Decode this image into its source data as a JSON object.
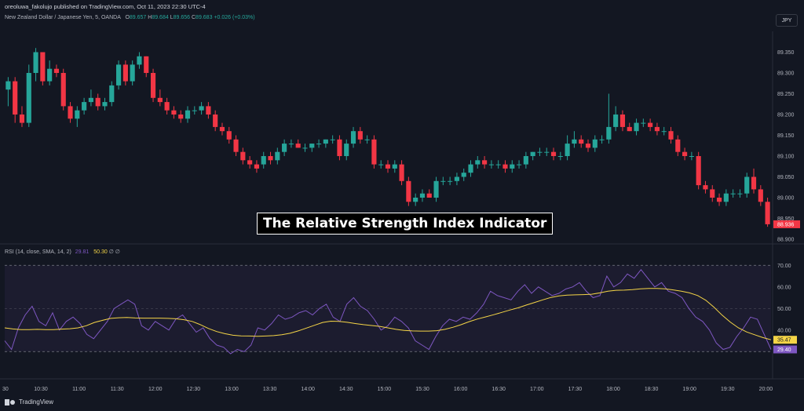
{
  "header": {
    "published": "oreoluwa_fakolujo published on TradingView.com, Oct 11, 2023 22:30 UTC-4",
    "symbol": "New Zealand Dollar / Japanese Yen, 5, OANDA",
    "o_label": "O",
    "o_value": "89.657",
    "h_label": "H",
    "h_value": "89.684",
    "l_label": "L",
    "l_value": "89.656",
    "c_label": "C",
    "c_value": "89.683",
    "change": "+0.026 (+0.03%)",
    "currency_button": "JPY"
  },
  "overlay_title": "The Relative Strength Index Indicator",
  "rsi_legend": {
    "label": "RSI (14, close, SMA, 14, 2)",
    "rsi_value": "29.81",
    "sma_value": "50.30",
    "icons": "∅ ∅"
  },
  "footer": {
    "brand": "TradingView"
  },
  "colors": {
    "up": "#26a69a",
    "down": "#f23645",
    "rsi": "#7e57c2",
    "sma": "#f5d547",
    "background": "#131722"
  },
  "chart_data": [
    {
      "type": "candlestick",
      "title": "New Zealand Dollar / Japanese Yen, 5, OANDA",
      "y_ticks": [
        "89.350",
        "89.300",
        "89.250",
        "89.200",
        "89.150",
        "89.100",
        "89.050",
        "89.000",
        "88.950",
        "88.900"
      ],
      "ylim": [
        88.9,
        89.4
      ],
      "last_price_label": "88.936",
      "candles": [
        {
          "o": 89.26,
          "h": 89.29,
          "l": 89.22,
          "c": 89.28
        },
        {
          "o": 89.28,
          "h": 89.29,
          "l": 89.18,
          "c": 89.2
        },
        {
          "o": 89.2,
          "h": 89.22,
          "l": 89.17,
          "c": 89.18
        },
        {
          "o": 89.18,
          "h": 89.32,
          "l": 89.17,
          "c": 89.3
        },
        {
          "o": 89.3,
          "h": 89.36,
          "l": 89.28,
          "c": 89.35
        },
        {
          "o": 89.35,
          "h": 89.35,
          "l": 89.27,
          "c": 89.28
        },
        {
          "o": 89.28,
          "h": 89.33,
          "l": 89.27,
          "c": 89.31
        },
        {
          "o": 89.31,
          "h": 89.32,
          "l": 89.29,
          "c": 89.3
        },
        {
          "o": 89.3,
          "h": 89.31,
          "l": 89.21,
          "c": 89.22
        },
        {
          "o": 89.22,
          "h": 89.23,
          "l": 89.18,
          "c": 89.19
        },
        {
          "o": 89.19,
          "h": 89.22,
          "l": 89.17,
          "c": 89.21
        },
        {
          "o": 89.21,
          "h": 89.24,
          "l": 89.2,
          "c": 89.23
        },
        {
          "o": 89.23,
          "h": 89.26,
          "l": 89.22,
          "c": 89.24
        },
        {
          "o": 89.24,
          "h": 89.25,
          "l": 89.21,
          "c": 89.22
        },
        {
          "o": 89.22,
          "h": 89.24,
          "l": 89.21,
          "c": 89.23
        },
        {
          "o": 89.23,
          "h": 89.28,
          "l": 89.22,
          "c": 89.27
        },
        {
          "o": 89.27,
          "h": 89.33,
          "l": 89.26,
          "c": 89.32
        },
        {
          "o": 89.32,
          "h": 89.33,
          "l": 89.27,
          "c": 89.28
        },
        {
          "o": 89.28,
          "h": 89.33,
          "l": 89.27,
          "c": 89.32
        },
        {
          "o": 89.32,
          "h": 89.35,
          "l": 89.31,
          "c": 89.34
        },
        {
          "o": 89.34,
          "h": 89.34,
          "l": 89.29,
          "c": 89.3
        },
        {
          "o": 89.3,
          "h": 89.31,
          "l": 89.23,
          "c": 89.24
        },
        {
          "o": 89.24,
          "h": 89.26,
          "l": 89.22,
          "c": 89.23
        },
        {
          "o": 89.23,
          "h": 89.24,
          "l": 89.2,
          "c": 89.21
        },
        {
          "o": 89.21,
          "h": 89.22,
          "l": 89.19,
          "c": 89.2
        },
        {
          "o": 89.2,
          "h": 89.21,
          "l": 89.18,
          "c": 89.19
        },
        {
          "o": 89.19,
          "h": 89.22,
          "l": 89.18,
          "c": 89.21
        },
        {
          "o": 89.21,
          "h": 89.22,
          "l": 89.2,
          "c": 89.21
        },
        {
          "o": 89.21,
          "h": 89.23,
          "l": 89.2,
          "c": 89.22
        },
        {
          "o": 89.22,
          "h": 89.23,
          "l": 89.19,
          "c": 89.2
        },
        {
          "o": 89.2,
          "h": 89.21,
          "l": 89.16,
          "c": 89.17
        },
        {
          "o": 89.17,
          "h": 89.18,
          "l": 89.15,
          "c": 89.16
        },
        {
          "o": 89.16,
          "h": 89.17,
          "l": 89.13,
          "c": 89.14
        },
        {
          "o": 89.14,
          "h": 89.15,
          "l": 89.1,
          "c": 89.11
        },
        {
          "o": 89.11,
          "h": 89.12,
          "l": 89.08,
          "c": 89.09
        },
        {
          "o": 89.09,
          "h": 89.1,
          "l": 89.07,
          "c": 89.08
        },
        {
          "o": 89.08,
          "h": 89.09,
          "l": 89.06,
          "c": 89.07
        },
        {
          "o": 89.08,
          "h": 89.11,
          "l": 89.07,
          "c": 89.1
        },
        {
          "o": 89.1,
          "h": 89.11,
          "l": 89.08,
          "c": 89.09
        },
        {
          "o": 89.09,
          "h": 89.12,
          "l": 89.08,
          "c": 89.11
        },
        {
          "o": 89.11,
          "h": 89.14,
          "l": 89.1,
          "c": 89.13
        },
        {
          "o": 89.13,
          "h": 89.14,
          "l": 89.12,
          "c": 89.13
        },
        {
          "o": 89.13,
          "h": 89.14,
          "l": 89.12,
          "c": 89.12
        },
        {
          "o": 89.12,
          "h": 89.13,
          "l": 89.11,
          "c": 89.12
        },
        {
          "o": 89.12,
          "h": 89.13,
          "l": 89.11,
          "c": 89.13
        },
        {
          "o": 89.13,
          "h": 89.14,
          "l": 89.12,
          "c": 89.13
        },
        {
          "o": 89.13,
          "h": 89.14,
          "l": 89.12,
          "c": 89.14
        },
        {
          "o": 89.14,
          "h": 89.15,
          "l": 89.13,
          "c": 89.14
        },
        {
          "o": 89.14,
          "h": 89.15,
          "l": 89.09,
          "c": 89.1
        },
        {
          "o": 89.1,
          "h": 89.14,
          "l": 89.09,
          "c": 89.13
        },
        {
          "o": 89.13,
          "h": 89.17,
          "l": 89.12,
          "c": 89.16
        },
        {
          "o": 89.16,
          "h": 89.17,
          "l": 89.13,
          "c": 89.14
        },
        {
          "o": 89.14,
          "h": 89.15,
          "l": 89.13,
          "c": 89.14
        },
        {
          "o": 89.14,
          "h": 89.15,
          "l": 89.07,
          "c": 89.08
        },
        {
          "o": 89.08,
          "h": 89.09,
          "l": 89.07,
          "c": 89.08
        },
        {
          "o": 89.08,
          "h": 89.09,
          "l": 89.06,
          "c": 89.07
        },
        {
          "o": 89.07,
          "h": 89.09,
          "l": 89.06,
          "c": 89.08
        },
        {
          "o": 89.08,
          "h": 89.09,
          "l": 89.03,
          "c": 89.04
        },
        {
          "o": 89.04,
          "h": 89.05,
          "l": 88.98,
          "c": 88.99
        },
        {
          "o": 88.99,
          "h": 89.01,
          "l": 88.98,
          "c": 89.0
        },
        {
          "o": 89.0,
          "h": 89.02,
          "l": 88.99,
          "c": 89.01
        },
        {
          "o": 89.01,
          "h": 89.02,
          "l": 89.0,
          "c": 89.0
        },
        {
          "o": 89.0,
          "h": 89.05,
          "l": 88.99,
          "c": 89.04
        },
        {
          "o": 89.04,
          "h": 89.05,
          "l": 89.03,
          "c": 89.04
        },
        {
          "o": 89.04,
          "h": 89.05,
          "l": 89.03,
          "c": 89.04
        },
        {
          "o": 89.04,
          "h": 89.06,
          "l": 89.03,
          "c": 89.05
        },
        {
          "o": 89.05,
          "h": 89.07,
          "l": 89.04,
          "c": 89.06
        },
        {
          "o": 89.06,
          "h": 89.09,
          "l": 89.05,
          "c": 89.08
        },
        {
          "o": 89.08,
          "h": 89.1,
          "l": 89.07,
          "c": 89.09
        },
        {
          "o": 89.09,
          "h": 89.1,
          "l": 89.07,
          "c": 89.08
        },
        {
          "o": 89.08,
          "h": 89.09,
          "l": 89.07,
          "c": 89.08
        },
        {
          "o": 89.08,
          "h": 89.09,
          "l": 89.07,
          "c": 89.08
        },
        {
          "o": 89.08,
          "h": 89.09,
          "l": 89.06,
          "c": 89.07
        },
        {
          "o": 89.07,
          "h": 89.09,
          "l": 89.06,
          "c": 89.08
        },
        {
          "o": 89.08,
          "h": 89.09,
          "l": 89.07,
          "c": 89.08
        },
        {
          "o": 89.08,
          "h": 89.11,
          "l": 89.07,
          "c": 89.1
        },
        {
          "o": 89.1,
          "h": 89.11,
          "l": 89.09,
          "c": 89.11
        },
        {
          "o": 89.11,
          "h": 89.12,
          "l": 89.1,
          "c": 89.11
        },
        {
          "o": 89.11,
          "h": 89.12,
          "l": 89.1,
          "c": 89.11
        },
        {
          "o": 89.11,
          "h": 89.12,
          "l": 89.09,
          "c": 89.1
        },
        {
          "o": 89.1,
          "h": 89.11,
          "l": 89.09,
          "c": 89.1
        },
        {
          "o": 89.1,
          "h": 89.15,
          "l": 89.09,
          "c": 89.13
        },
        {
          "o": 89.13,
          "h": 89.16,
          "l": 89.12,
          "c": 89.14
        },
        {
          "o": 89.14,
          "h": 89.15,
          "l": 89.12,
          "c": 89.13
        },
        {
          "o": 89.13,
          "h": 89.14,
          "l": 89.11,
          "c": 89.12
        },
        {
          "o": 89.12,
          "h": 89.15,
          "l": 89.11,
          "c": 89.14
        },
        {
          "o": 89.14,
          "h": 89.15,
          "l": 89.13,
          "c": 89.14
        },
        {
          "o": 89.14,
          "h": 89.25,
          "l": 89.13,
          "c": 89.17
        },
        {
          "o": 89.17,
          "h": 89.22,
          "l": 89.16,
          "c": 89.2
        },
        {
          "o": 89.2,
          "h": 89.21,
          "l": 89.16,
          "c": 89.17
        },
        {
          "o": 89.17,
          "h": 89.18,
          "l": 89.16,
          "c": 89.16
        },
        {
          "o": 89.16,
          "h": 89.19,
          "l": 89.15,
          "c": 89.18
        },
        {
          "o": 89.18,
          "h": 89.19,
          "l": 89.17,
          "c": 89.18
        },
        {
          "o": 89.18,
          "h": 89.19,
          "l": 89.16,
          "c": 89.17
        },
        {
          "o": 89.17,
          "h": 89.18,
          "l": 89.15,
          "c": 89.16
        },
        {
          "o": 89.16,
          "h": 89.17,
          "l": 89.15,
          "c": 89.16
        },
        {
          "o": 89.16,
          "h": 89.17,
          "l": 89.13,
          "c": 89.14
        },
        {
          "o": 89.14,
          "h": 89.15,
          "l": 89.1,
          "c": 89.11
        },
        {
          "o": 89.11,
          "h": 89.12,
          "l": 89.09,
          "c": 89.1
        },
        {
          "o": 89.1,
          "h": 89.11,
          "l": 89.09,
          "c": 89.1
        },
        {
          "o": 89.1,
          "h": 89.11,
          "l": 89.02,
          "c": 89.03
        },
        {
          "o": 89.03,
          "h": 89.04,
          "l": 89.01,
          "c": 89.02
        },
        {
          "o": 89.02,
          "h": 89.03,
          "l": 88.99,
          "c": 89.0
        },
        {
          "o": 89.0,
          "h": 89.01,
          "l": 88.98,
          "c": 88.99
        },
        {
          "o": 88.99,
          "h": 89.02,
          "l": 88.98,
          "c": 89.01
        },
        {
          "o": 89.01,
          "h": 89.02,
          "l": 89.0,
          "c": 89.01
        },
        {
          "o": 89.01,
          "h": 89.02,
          "l": 89.0,
          "c": 89.01
        },
        {
          "o": 89.01,
          "h": 89.06,
          "l": 89.0,
          "c": 89.05
        },
        {
          "o": 89.05,
          "h": 89.07,
          "l": 89.01,
          "c": 89.02
        },
        {
          "o": 89.02,
          "h": 89.03,
          "l": 88.98,
          "c": 88.99
        },
        {
          "o": 88.99,
          "h": 89.0,
          "l": 88.93,
          "c": 88.936
        }
      ]
    },
    {
      "type": "line",
      "title": "RSI (14, close, SMA, 14, 2)",
      "y_ticks": [
        "70.00",
        "60.00",
        "50.00",
        "40.00"
      ],
      "ylim": [
        25,
        73
      ],
      "band": [
        30,
        70
      ],
      "midline": 50,
      "last_labels": {
        "rsi": "29.40",
        "sma": "35.47"
      },
      "x_ticks": [
        "10:30",
        "11:00",
        "11:30",
        "12:00",
        "12:30",
        "13:00",
        "13:30",
        "14:00",
        "14:30",
        "15:00",
        "15:30",
        "16:00",
        "16:30",
        "17:00",
        "17:30",
        "18:00",
        "18:30",
        "19:00",
        "19:30",
        "20:00"
      ],
      "series": [
        {
          "name": "RSI",
          "values": [
            35,
            31,
            41,
            47,
            51,
            44,
            42,
            48,
            40,
            44,
            46,
            43,
            38,
            36,
            40,
            44,
            50,
            52,
            54,
            52,
            42,
            40,
            44,
            42,
            40,
            45,
            47,
            43,
            39,
            41,
            36,
            33,
            32,
            29,
            31,
            30,
            33,
            41,
            40,
            43,
            47,
            45,
            46,
            48,
            49,
            47,
            50,
            52,
            46,
            44,
            52,
            55,
            51,
            49,
            45,
            40,
            42,
            46,
            44,
            41,
            35,
            33,
            31,
            37,
            42,
            45,
            44,
            46,
            45,
            48,
            52,
            58,
            56,
            55,
            54,
            58,
            61,
            57,
            60,
            58,
            56,
            57,
            59,
            60,
            62,
            58,
            55,
            56,
            65,
            60,
            62,
            66,
            64,
            68,
            64,
            60,
            62,
            58,
            57,
            55,
            50,
            46,
            44,
            40,
            34,
            31,
            32,
            37,
            41,
            46,
            45,
            38,
            31
          ]
        },
        {
          "name": "SMA",
          "values": [
            41,
            40.5,
            40.2,
            40.2,
            40.3,
            40.2,
            40.2,
            40.4,
            40.6,
            41.0,
            42,
            43.5,
            44.5,
            45.4,
            45.7,
            45.8,
            45.6,
            45.5,
            45.5,
            45.5,
            45.4,
            45.2,
            44.8,
            44.0,
            42.5,
            40.7,
            39.3,
            38.3,
            37.6,
            37.3,
            37.2,
            37.1,
            37.2,
            37.4,
            37.8,
            38.5,
            39.6,
            40.9,
            42.2,
            43.5,
            44.1,
            44.0,
            43.6,
            43.0,
            42.5,
            42.1,
            41.7,
            41.0,
            40.3,
            39.8,
            39.6,
            39.5,
            39.5,
            39.7,
            40.3,
            41.3,
            42.5,
            43.9,
            45.1,
            46.1,
            47.1,
            48.2,
            49.3,
            50.3,
            51.6,
            52.8,
            54.0,
            55.1,
            55.8,
            56.2,
            56.3,
            56.4,
            56.6,
            57.2,
            58.0,
            58.4,
            58.5,
            58.7,
            59.1,
            59.3,
            59.3,
            59.1,
            58.6,
            58.0,
            57.2,
            56.0,
            53.8,
            50.6,
            46.9,
            43.7,
            41.0,
            39.1,
            37.8,
            36.5,
            35.47
          ]
        }
      ]
    }
  ]
}
